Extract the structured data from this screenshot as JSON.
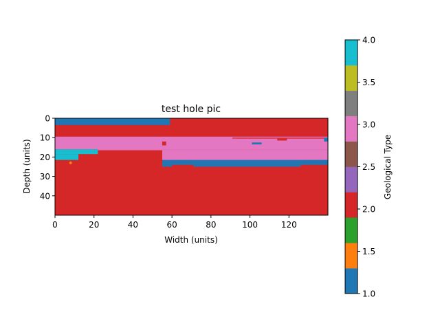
{
  "chart_data": {
    "type": "heatmap",
    "title": "test hole pic",
    "xlabel": "Width (units)",
    "ylabel": "Depth (units)",
    "x_range": [
      0,
      140
    ],
    "y_range": [
      0,
      50
    ],
    "y_inverted": true,
    "xticks": [
      "0",
      "20",
      "40",
      "60",
      "80",
      "100",
      "120"
    ],
    "yticks": [
      "0",
      "10",
      "20",
      "30",
      "40"
    ],
    "colorbar": {
      "label": "Geological Type",
      "range": [
        1.0,
        4.0
      ],
      "ticks": [
        "1.0",
        "1.5",
        "2.0",
        "2.5",
        "3.0",
        "3.5",
        "4.0"
      ],
      "colors": [
        "#1f77b4",
        "#ff7f0e",
        "#2ca02c",
        "#d62728",
        "#9467bd",
        "#8c564b",
        "#e377c2",
        "#7f7f7f",
        "#bcbd22",
        "#17becf"
      ]
    },
    "background_type": 2.0,
    "regions": [
      {
        "type": 1.0,
        "x0": 0,
        "x1": 59,
        "y0": 0,
        "y1": 3.5
      },
      {
        "type": 2.0,
        "x0": 59,
        "x1": 140,
        "y0": 0,
        "y1": 10
      },
      {
        "type": 3.0,
        "x0": 0,
        "x1": 140,
        "y0": 9.5,
        "y1": 16
      },
      {
        "type": 3.0,
        "x0": 22,
        "x1": 140,
        "y0": 16,
        "y1": 16.5
      },
      {
        "type": 3.0,
        "x0": 55,
        "x1": 140,
        "y0": 16.5,
        "y1": 22
      },
      {
        "type": 2.0,
        "x0": 91,
        "x1": 140,
        "y0": 10,
        "y1": 10.5
      },
      {
        "type": 4.0,
        "x0": 0,
        "x1": 22,
        "y0": 16,
        "y1": 18.5
      },
      {
        "type": 4.0,
        "x0": 0,
        "x1": 12,
        "y0": 18.5,
        "y1": 21.5
      },
      {
        "type": 1.0,
        "x0": 55,
        "x1": 140,
        "y0": 21.5,
        "y1": 24
      },
      {
        "type": 1.0,
        "x0": 55,
        "x1": 60,
        "y0": 24,
        "y1": 25
      },
      {
        "type": 1.0,
        "x0": 71,
        "x1": 126,
        "y0": 24,
        "y1": 25
      },
      {
        "type": 1.0,
        "x0": 138,
        "x1": 140,
        "y0": 10,
        "y1": 12
      },
      {
        "type": 1.0,
        "x0": 101,
        "x1": 106,
        "y0": 12.5,
        "y1": 13.5
      },
      {
        "type": 2.0,
        "x0": 114,
        "x1": 119,
        "y0": 10.5,
        "y1": 11.5
      },
      {
        "type": 2.0,
        "x0": 55,
        "x1": 57,
        "y0": 12,
        "y1": 14
      }
    ],
    "small_features": [
      {
        "type": 1.5,
        "x": 8,
        "y": 23
      }
    ]
  }
}
